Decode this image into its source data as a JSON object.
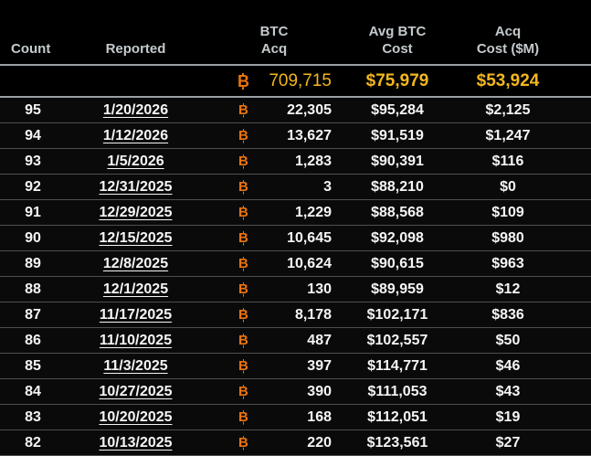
{
  "chart_data": {
    "type": "table",
    "columns": [
      "Count",
      "Reported",
      "BTC Acq",
      "Avg BTC Cost",
      "Acq Cost ($M)"
    ],
    "summary_row": {
      "btc_acq": "709,715",
      "avg_btc_cost": "$75,979",
      "acq_cost_m": "$53,924"
    },
    "rows": [
      {
        "count": "95",
        "reported": "1/20/2026",
        "btc_acq": "22,305",
        "avg_btc_cost": "$95,284",
        "acq_cost_m": "$2,125"
      },
      {
        "count": "94",
        "reported": "1/12/2026",
        "btc_acq": "13,627",
        "avg_btc_cost": "$91,519",
        "acq_cost_m": "$1,247"
      },
      {
        "count": "93",
        "reported": "1/5/2026",
        "btc_acq": "1,283",
        "avg_btc_cost": "$90,391",
        "acq_cost_m": "$116"
      },
      {
        "count": "92",
        "reported": "12/31/2025",
        "btc_acq": "3",
        "avg_btc_cost": "$88,210",
        "acq_cost_m": "$0"
      },
      {
        "count": "91",
        "reported": "12/29/2025",
        "btc_acq": "1,229",
        "avg_btc_cost": "$88,568",
        "acq_cost_m": "$109"
      },
      {
        "count": "90",
        "reported": "12/15/2025",
        "btc_acq": "10,645",
        "avg_btc_cost": "$92,098",
        "acq_cost_m": "$980"
      },
      {
        "count": "89",
        "reported": "12/8/2025",
        "btc_acq": "10,624",
        "avg_btc_cost": "$90,615",
        "acq_cost_m": "$963"
      },
      {
        "count": "88",
        "reported": "12/1/2025",
        "btc_acq": "130",
        "avg_btc_cost": "$89,959",
        "acq_cost_m": "$12"
      },
      {
        "count": "87",
        "reported": "11/17/2025",
        "btc_acq": "8,178",
        "avg_btc_cost": "$102,171",
        "acq_cost_m": "$836"
      },
      {
        "count": "86",
        "reported": "11/10/2025",
        "btc_acq": "487",
        "avg_btc_cost": "$102,557",
        "acq_cost_m": "$50"
      },
      {
        "count": "85",
        "reported": "11/3/2025",
        "btc_acq": "397",
        "avg_btc_cost": "$114,771",
        "acq_cost_m": "$46"
      },
      {
        "count": "84",
        "reported": "10/27/2025",
        "btc_acq": "390",
        "avg_btc_cost": "$111,053",
        "acq_cost_m": "$43"
      },
      {
        "count": "83",
        "reported": "10/20/2025",
        "btc_acq": "168",
        "avg_btc_cost": "$112,051",
        "acq_cost_m": "$19"
      },
      {
        "count": "82",
        "reported": "10/13/2025",
        "btc_acq": "220",
        "avg_btc_cost": "$123,561",
        "acq_cost_m": "$27"
      }
    ]
  },
  "header": {
    "count": "Count",
    "reported": "Reported",
    "btc_acq": "BTC\nAcq",
    "avg_btc_cost": "Avg BTC\nCost",
    "acq_cost": "Acq\nCost ($M)"
  },
  "colors": {
    "background": "#000000",
    "row_background": "#0a0a0a",
    "row_text": "#f5f5f5",
    "header_text": "#c4cacd",
    "btc_orange": "#e8730d",
    "summary_gold": "#f2b71d",
    "rule_light": "#9aa0a3",
    "row_divider": "#4d4f50"
  }
}
